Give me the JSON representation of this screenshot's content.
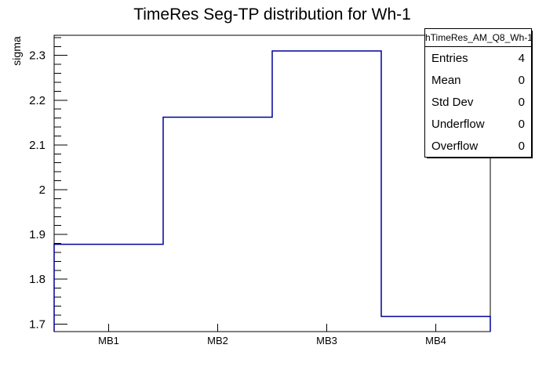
{
  "chart_data": {
    "type": "bar",
    "subtype": "step-histogram-outline",
    "title": "TimeRes Seg-TP distribution for Wh-1",
    "xlabel": "",
    "ylabel": "sigma",
    "categories": [
      "MB1",
      "MB2",
      "MB3",
      "MB4"
    ],
    "values": [
      1.878,
      2.162,
      2.31,
      1.717
    ],
    "ylim": [
      1.683,
      2.345
    ],
    "y_major_ticks": [
      1.7,
      1.8,
      1.9,
      2.0,
      2.1,
      2.2,
      2.3
    ],
    "y_major_labels": [
      "1.7",
      "1.8",
      "1.9",
      "2",
      "2.1",
      "2.2",
      "2.3"
    ],
    "y_minor_step": 0.02,
    "grid": false,
    "legend_position": "none",
    "line_color": "#000099",
    "axis_color": "#000000",
    "background_color": "#ffffff"
  },
  "stats": {
    "title": "hTimeRes_AM_Q8_Wh-1",
    "rows": [
      {
        "label": "Entries",
        "value": "4"
      },
      {
        "label": "Mean",
        "value": "0"
      },
      {
        "label": "Std Dev",
        "value": "0"
      },
      {
        "label": "Underflow",
        "value": "0"
      },
      {
        "label": "Overflow",
        "value": "0"
      }
    ]
  }
}
